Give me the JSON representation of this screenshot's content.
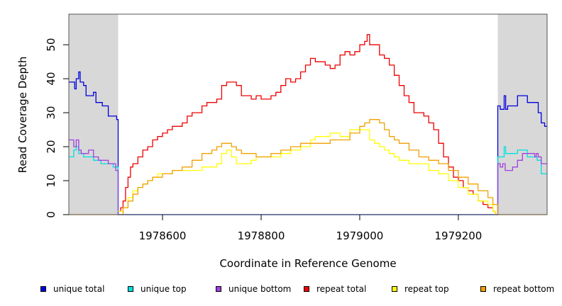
{
  "chart_data": {
    "type": "line",
    "title": "",
    "xlabel": "Coordinate in Reference Genome",
    "ylabel": "Read Coverage Depth",
    "xlim": [
      1978410,
      1979380
    ],
    "ylim": [
      0,
      59
    ],
    "x_ticks": [
      1978600,
      1978800,
      1979000,
      1979200
    ],
    "x_tick_labels": [
      "1978600",
      "1978800",
      "1979000",
      "1979200"
    ],
    "y_ticks": [
      0,
      10,
      20,
      30,
      40,
      50
    ],
    "y_tick_labels": [
      "0",
      "10",
      "20",
      "30",
      "40",
      "50"
    ],
    "shaded_regions": [
      [
        1978410,
        1978510
      ],
      [
        1979280,
        1979380
      ]
    ],
    "colors": {
      "unique total": "#0000dd",
      "unique top": "#00e0e0",
      "unique bottom": "#a040e0",
      "repeat total": "#ee0000",
      "repeat top": "#ffff00",
      "repeat bottom": "#f0a000",
      "shade": "#d8d8d8"
    },
    "series": [
      {
        "name": "unique total",
        "color": "#0000dd",
        "x": [
          1978410,
          1978418,
          1978422,
          1978425,
          1978430,
          1978433,
          1978440,
          1978445,
          1978450,
          1978460,
          1978465,
          1978470,
          1978478,
          1978485,
          1978490,
          1978500,
          1978505,
          1978507,
          1978509,
          1978510,
          1978512,
          1979270,
          1979276,
          1979279,
          1979280,
          1979285,
          1979290,
          1979293,
          1979296,
          1979300,
          1979310,
          1979320,
          1979330,
          1979340,
          1979350,
          1979358,
          1979362,
          1979368,
          1979375,
          1979380
        ],
        "y": [
          39,
          39,
          37,
          40,
          42,
          39,
          38,
          35,
          35,
          36,
          33,
          33,
          32,
          32,
          29,
          29,
          29,
          28,
          28,
          0,
          0,
          0,
          0,
          0,
          32,
          31,
          31,
          35,
          31,
          32,
          32,
          35,
          35,
          33,
          33,
          33,
          30,
          27,
          26,
          26
        ]
      },
      {
        "name": "unique top",
        "color": "#00e0e0",
        "x": [
          1978410,
          1978415,
          1978420,
          1978425,
          1978430,
          1978440,
          1978450,
          1978460,
          1978475,
          1978490,
          1978500,
          1978509,
          1978510,
          1979279,
          1979280,
          1979290,
          1979293,
          1979296,
          1979310,
          1979320,
          1979340,
          1979350,
          1979360,
          1979368,
          1979380
        ],
        "y": [
          17,
          17,
          19,
          20,
          18,
          17,
          17,
          16,
          15,
          15,
          14,
          14,
          0,
          0,
          17,
          17,
          20,
          18,
          18,
          19,
          17,
          17,
          16,
          12,
          12
        ]
      },
      {
        "name": "unique bottom",
        "color": "#a040e0",
        "x": [
          1978410,
          1978415,
          1978420,
          1978425,
          1978430,
          1978435,
          1978445,
          1978450,
          1978460,
          1978470,
          1978480,
          1978490,
          1978500,
          1978505,
          1978509,
          1978510,
          1979279,
          1979280,
          1979285,
          1979290,
          1979295,
          1979300,
          1979310,
          1979320,
          1979330,
          1979340,
          1979350,
          1979355,
          1979358,
          1979362,
          1979368,
          1979380
        ],
        "y": [
          22,
          22,
          20,
          22,
          19,
          18,
          18,
          19,
          17,
          16,
          16,
          15,
          15,
          13,
          13,
          0,
          0,
          15,
          14,
          15,
          13,
          13,
          14,
          16,
          18,
          18,
          18,
          17,
          18,
          17,
          15,
          15
        ]
      },
      {
        "name": "repeat total",
        "color": "#ee0000",
        "x": [
          1978510,
          1978515,
          1978520,
          1978525,
          1978530,
          1978535,
          1978540,
          1978550,
          1978560,
          1978570,
          1978580,
          1978590,
          1978600,
          1978610,
          1978620,
          1978630,
          1978640,
          1978650,
          1978660,
          1978670,
          1978680,
          1978690,
          1978700,
          1978710,
          1978720,
          1978730,
          1978740,
          1978750,
          1978760,
          1978770,
          1978780,
          1978790,
          1978800,
          1978810,
          1978820,
          1978830,
          1978840,
          1978850,
          1978860,
          1978870,
          1978880,
          1978890,
          1978900,
          1978910,
          1978920,
          1978930,
          1978940,
          1978950,
          1978960,
          1978970,
          1978980,
          1978990,
          1979000,
          1979010,
          1979015,
          1979020,
          1979030,
          1979040,
          1979050,
          1979060,
          1979070,
          1979080,
          1979090,
          1979100,
          1979110,
          1979120,
          1979130,
          1979140,
          1979150,
          1979160,
          1979170,
          1979180,
          1979190,
          1979200,
          1979210,
          1979220,
          1979230,
          1979240,
          1979250,
          1979260,
          1979265,
          1979270,
          1979275
        ],
        "y": [
          1,
          2,
          4,
          8,
          11,
          14,
          15,
          17,
          19,
          20,
          22,
          23,
          24,
          25,
          26,
          26,
          27,
          29,
          30,
          30,
          32,
          33,
          33,
          34,
          38,
          39,
          39,
          38,
          35,
          35,
          34,
          35,
          34,
          34,
          35,
          36,
          38,
          40,
          39,
          40,
          42,
          44,
          46,
          45,
          45,
          44,
          43,
          44,
          47,
          48,
          47,
          48,
          50,
          51,
          53,
          50,
          50,
          47,
          46,
          44,
          41,
          38,
          35,
          33,
          30,
          30,
          29,
          27,
          25,
          21,
          17,
          14,
          11,
          10,
          8,
          7,
          6,
          4,
          3,
          2,
          2,
          1,
          0
        ]
      },
      {
        "name": "repeat top",
        "color": "#ffff00",
        "x": [
          1978510,
          1978520,
          1978530,
          1978540,
          1978550,
          1978560,
          1978570,
          1978580,
          1978590,
          1978600,
          1978620,
          1978640,
          1978660,
          1978680,
          1978700,
          1978710,
          1978720,
          1978730,
          1978740,
          1978750,
          1978760,
          1978770,
          1978780,
          1978790,
          1978800,
          1978820,
          1978840,
          1978860,
          1978880,
          1978900,
          1978910,
          1978920,
          1978940,
          1978960,
          1978980,
          1979000,
          1979010,
          1979020,
          1979030,
          1979040,
          1979050,
          1979060,
          1979070,
          1979080,
          1979100,
          1979120,
          1979140,
          1979160,
          1979180,
          1979200,
          1979220,
          1979240,
          1979260,
          1979270,
          1979275
        ],
        "y": [
          1,
          2,
          5,
          7,
          8,
          9,
          10,
          11,
          12,
          12,
          13,
          13,
          13,
          14,
          14,
          15,
          18,
          19,
          17,
          15,
          15,
          15,
          16,
          17,
          17,
          17,
          18,
          19,
          20,
          22,
          23,
          23,
          24,
          23,
          25,
          25,
          25,
          22,
          21,
          20,
          19,
          18,
          17,
          16,
          15,
          15,
          13,
          12,
          10,
          8,
          6,
          4,
          3,
          1,
          0
        ]
      },
      {
        "name": "repeat bottom",
        "color": "#f0a000",
        "x": [
          1978410,
          1978510,
          1978520,
          1978530,
          1978540,
          1978550,
          1978560,
          1978570,
          1978580,
          1978590,
          1978600,
          1978620,
          1978640,
          1978660,
          1978680,
          1978700,
          1978710,
          1978720,
          1978730,
          1978740,
          1978750,
          1978760,
          1978770,
          1978780,
          1978790,
          1978800,
          1978820,
          1978840,
          1978860,
          1978880,
          1978900,
          1978920,
          1978940,
          1978960,
          1978980,
          1979000,
          1979010,
          1979020,
          1979030,
          1979040,
          1979050,
          1979060,
          1979070,
          1979080,
          1979100,
          1979120,
          1979140,
          1979160,
          1979180,
          1979200,
          1979220,
          1979240,
          1979260,
          1979270,
          1979280,
          1979380
        ],
        "y": [
          0,
          0,
          2,
          4,
          6,
          8,
          9,
          10,
          11,
          11,
          12,
          13,
          14,
          16,
          18,
          19,
          20,
          21,
          21,
          20,
          19,
          18,
          18,
          18,
          17,
          17,
          18,
          19,
          20,
          21,
          21,
          21,
          22,
          22,
          24,
          26,
          27,
          28,
          28,
          27,
          25,
          23,
          22,
          21,
          19,
          17,
          16,
          15,
          13,
          11,
          9,
          7,
          5,
          3,
          0,
          0
        ]
      }
    ]
  },
  "legend": {
    "items": [
      {
        "label": "unique total",
        "color": "#0000dd"
      },
      {
        "label": "unique top",
        "color": "#00e0e0"
      },
      {
        "label": "unique bottom",
        "color": "#a040e0"
      },
      {
        "label": "repeat total",
        "color": "#ee0000"
      },
      {
        "label": "repeat top",
        "color": "#ffff00"
      },
      {
        "label": "repeat bottom",
        "color": "#f0a000"
      }
    ]
  }
}
